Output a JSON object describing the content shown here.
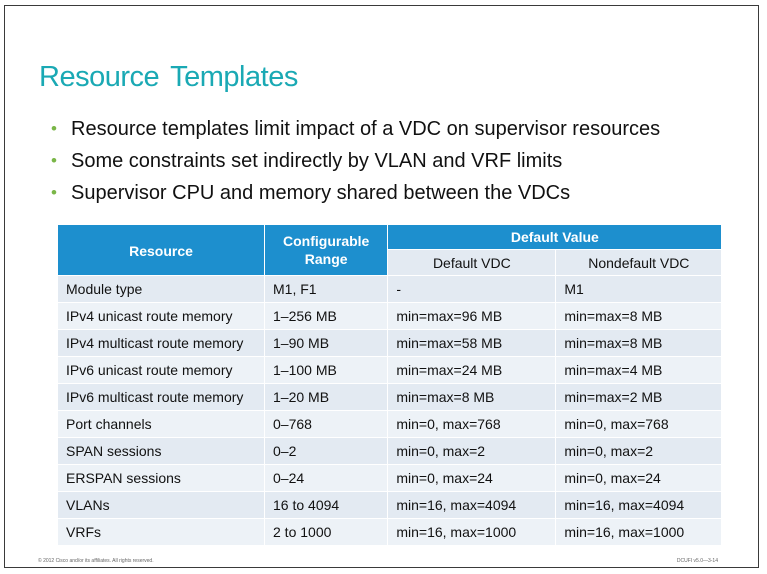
{
  "slide": {
    "title": "Resource Templates",
    "bullets": [
      "Resource templates limit impact of a VDC on supervisor resources",
      "Some constraints set indirectly by VLAN and VRF limits",
      "Supervisor CPU and memory shared between the VDCs"
    ],
    "bullet_glyph": "•"
  },
  "table": {
    "headers": {
      "resource": "Resource",
      "range": "Configurable Range",
      "default_value": "Default Value",
      "default_vdc": "Default VDC",
      "nondefault_vdc": "Nondefault VDC"
    },
    "rows": [
      {
        "resource": "Module type",
        "range": "M1, F1",
        "default_vdc": "-",
        "nondefault_vdc": "M1"
      },
      {
        "resource": "IPv4 unicast route memory",
        "range": "1–256 MB",
        "default_vdc": "min=max=96 MB",
        "nondefault_vdc": "min=max=8 MB"
      },
      {
        "resource": "IPv4 multicast route memory",
        "range": "1–90 MB",
        "default_vdc": "min=max=58 MB",
        "nondefault_vdc": "min=max=8 MB"
      },
      {
        "resource": "IPv6 unicast route memory",
        "range": "1–100 MB",
        "default_vdc": "min=max=24 MB",
        "nondefault_vdc": "min=max=4 MB"
      },
      {
        "resource": "IPv6 multicast route memory",
        "range": "1–20 MB",
        "default_vdc": "min=max=8 MB",
        "nondefault_vdc": "min=max=2 MB"
      },
      {
        "resource": "Port channels",
        "range": "0–768",
        "default_vdc": "min=0, max=768",
        "nondefault_vdc": "min=0, max=768"
      },
      {
        "resource": "SPAN sessions",
        "range": "0–2",
        "default_vdc": "min=0, max=2",
        "nondefault_vdc": "min=0, max=2"
      },
      {
        "resource": "ERSPAN sessions",
        "range": "0–24",
        "default_vdc": "min=0, max=24",
        "nondefault_vdc": "min=0, max=24"
      },
      {
        "resource": "VLANs",
        "range": "16 to 4094",
        "default_vdc": "min=16, max=4094",
        "nondefault_vdc": "min=16, max=4094"
      },
      {
        "resource": "VRFs",
        "range": "2 to 1000",
        "default_vdc": "min=16, max=1000",
        "nondefault_vdc": "min=16, max=1000"
      }
    ]
  },
  "footer": {
    "copyright": "© 2012 Cisco and/or its affiliates. All rights reserved.",
    "course": "DCUFI v5.0—3-14"
  },
  "colors": {
    "title": "#1aa9b4",
    "bullet": "#7ab648",
    "header": "#1d8fce",
    "row": "#e3eaf2"
  }
}
